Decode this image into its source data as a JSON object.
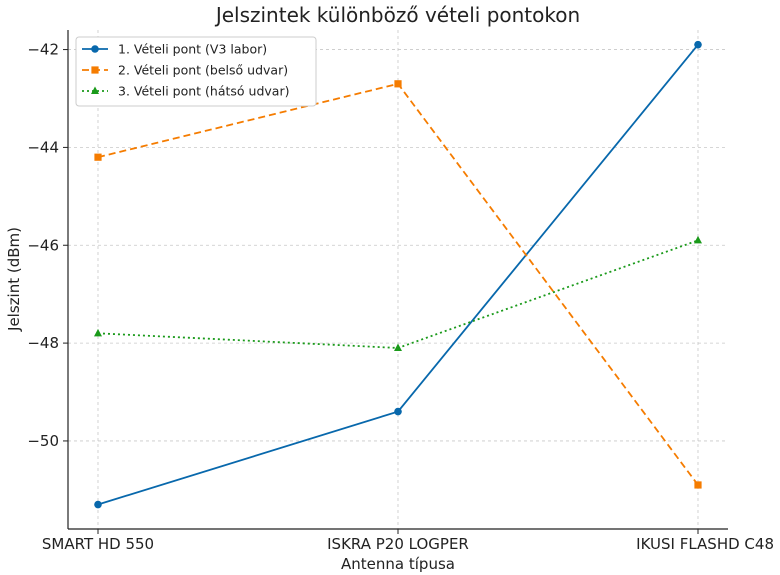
{
  "chart_data": {
    "type": "line",
    "title": "Jelszintek különböző vételi pontokon",
    "xlabel": "Antenna típusa",
    "ylabel": "Jelszint (dBm)",
    "categories": [
      "SMART HD 550",
      "ISKRA P20 LOGPER",
      "IKUSI FLASHD C48"
    ],
    "ylim": [
      -51.8,
      -41.6
    ],
    "yticks": [
      -42,
      -44,
      -46,
      -48,
      -50
    ],
    "ytick_labels": [
      "−42",
      "−44",
      "−46",
      "−48",
      "−50"
    ],
    "grid": true,
    "legend_position": "top-left",
    "series": [
      {
        "name": "1. Vételi pont (V3 labor)",
        "values": [
          -51.3,
          -49.4,
          -41.9
        ],
        "color": "#0868ac",
        "marker": "circle",
        "line_style": "solid"
      },
      {
        "name": "2. Vételi pont (belső udvar)",
        "values": [
          -44.2,
          -42.7,
          -50.9
        ],
        "color": "#f57c00",
        "marker": "square",
        "line_style": "dashed"
      },
      {
        "name": "3. Vételi pont (hátsó udvar)",
        "values": [
          -47.8,
          -48.1,
          -45.9
        ],
        "color": "#1a9a1a",
        "marker": "triangle",
        "line_style": "dotted"
      }
    ]
  }
}
